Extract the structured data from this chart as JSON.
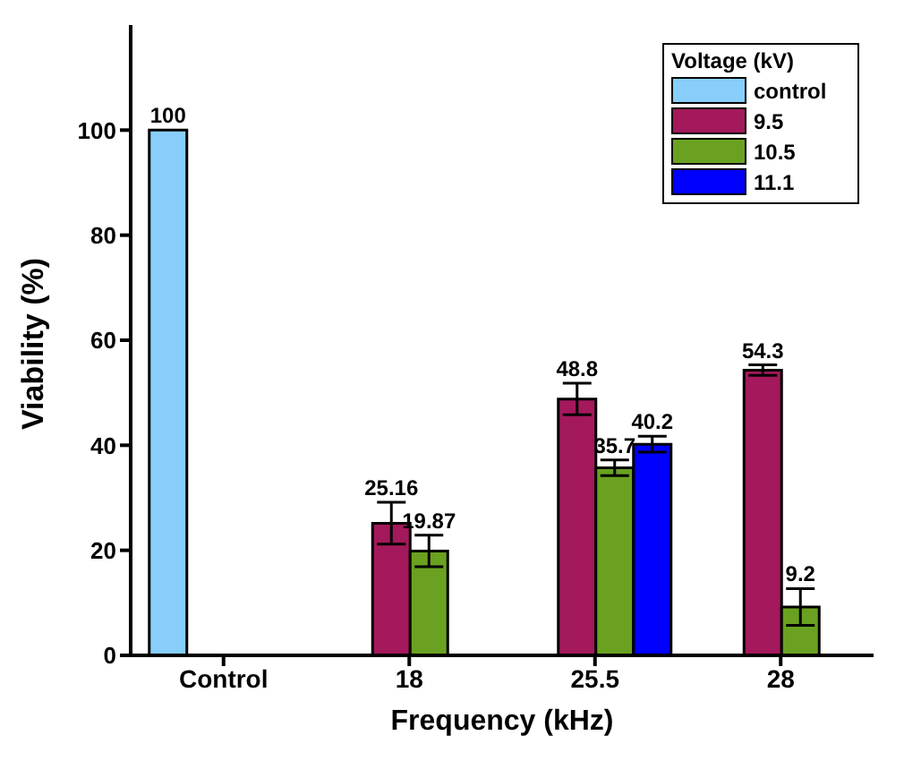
{
  "chart_data": {
    "type": "bar",
    "xlabel": "Frequency (kHz)",
    "ylabel": "Viability (%)",
    "legend_title": "Voltage (kV)",
    "categories": [
      "Control",
      "18",
      "25.5",
      "28"
    ],
    "series": [
      {
        "name": "control",
        "color": "#87cefa",
        "values": [
          100,
          null,
          null,
          null
        ],
        "errors": [
          null,
          null,
          null,
          null
        ]
      },
      {
        "name": "9.5",
        "color": "#a3195b",
        "values": [
          null,
          25.16,
          48.8,
          54.3
        ],
        "errors": [
          null,
          4,
          3,
          1
        ]
      },
      {
        "name": "10.5",
        "color": "#6aa121",
        "values": [
          null,
          19.87,
          35.7,
          9.2
        ],
        "errors": [
          null,
          3,
          1.5,
          3.5
        ]
      },
      {
        "name": "11.1",
        "color": "#0000ff",
        "values": [
          null,
          null,
          40.2,
          null
        ],
        "errors": [
          null,
          null,
          1.5,
          null
        ]
      }
    ],
    "ylim": [
      0,
      120
    ],
    "yticks": [
      0,
      20,
      40,
      60,
      80,
      100
    ],
    "data_labels": true,
    "legend": "top right",
    "grid": false
  }
}
